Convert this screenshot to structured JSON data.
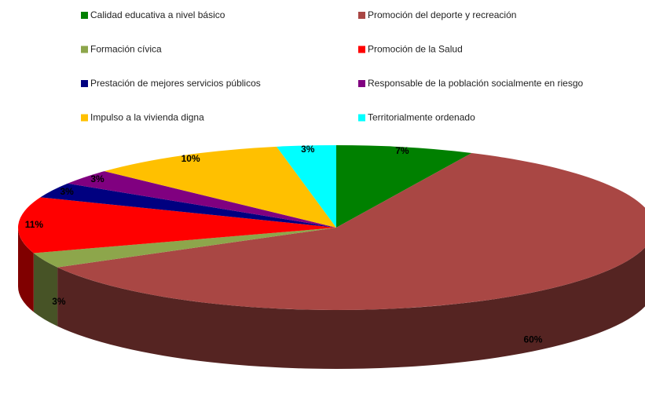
{
  "chart_data": {
    "type": "pie",
    "categories": [
      "Calidad educativa a nivel básico",
      "Promoción del deporte y recreación",
      "Formación cívica",
      "Promoción de la Salud",
      "Prestación de mejores servicios públicos",
      "Responsable de la población socialmente en riesgo",
      "Impulso a la vivienda digna",
      "Territorialmente ordenado"
    ],
    "values": [
      7,
      60,
      3,
      11,
      3,
      3,
      10,
      3
    ],
    "value_labels": [
      "7%",
      "60%",
      "3%",
      "11%",
      "3%",
      "3%",
      "10%",
      "3%"
    ],
    "colors": [
      "#008000",
      "#A94744",
      "#8DA64B",
      "#FF0000",
      "#000080",
      "#800080",
      "#FFC000",
      "#00FFFF"
    ],
    "legend": "top"
  }
}
